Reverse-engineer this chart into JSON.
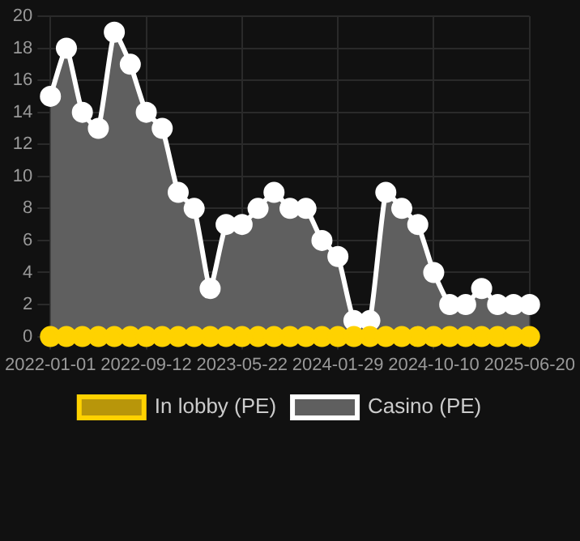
{
  "chart_data": {
    "type": "area",
    "categories": [
      "2022-01-01",
      null,
      null,
      null,
      null,
      null,
      "2022-09-12",
      null,
      null,
      null,
      null,
      null,
      "2023-05-22",
      null,
      null,
      null,
      null,
      null,
      "2024-01-29",
      null,
      null,
      null,
      null,
      null,
      "2024-10-10",
      null,
      null,
      null,
      null,
      null,
      "2025-06-20"
    ],
    "series": [
      {
        "name": "In lobby (PE)",
        "type": "line",
        "color": "#ffd200",
        "values": [
          0,
          0,
          0,
          0,
          0,
          0,
          0,
          0,
          0,
          0,
          0,
          0,
          0,
          0,
          0,
          0,
          0,
          0,
          0,
          0,
          0,
          0,
          0,
          0,
          0,
          0,
          0,
          0,
          0,
          0,
          0
        ]
      },
      {
        "name": "Casino (PE)",
        "color": "#ffffff",
        "values": [
          15,
          18,
          14,
          13,
          19,
          17,
          14,
          13,
          9,
          8,
          3,
          7,
          7,
          8,
          9,
          8,
          8,
          6,
          5,
          1,
          1,
          9,
          8,
          7,
          4,
          2,
          2,
          3,
          2,
          2,
          2
        ]
      }
    ],
    "ylim": [
      0,
      20
    ],
    "yticks": [
      0,
      2,
      4,
      6,
      8,
      10,
      12,
      14,
      16,
      18,
      20
    ],
    "grid": true,
    "legend": "bottom",
    "marker": "circle"
  }
}
